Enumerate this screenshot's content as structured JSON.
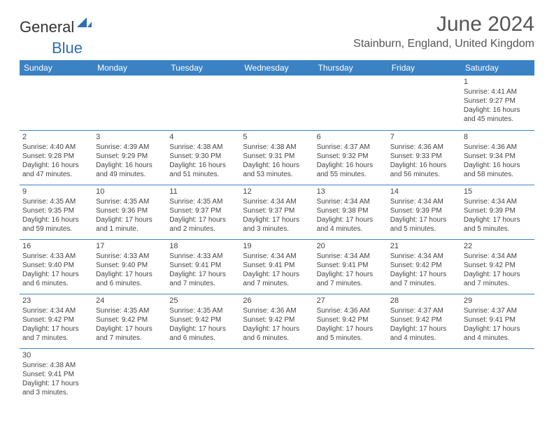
{
  "logo": {
    "part1": "General",
    "part2": "Blue"
  },
  "title": "June 2024",
  "location": "Stainburn, England, United Kingdom",
  "colors": {
    "header_bg": "#3b82c4",
    "header_text": "#ffffff",
    "border": "#3b82c4",
    "logo_blue": "#2d6fb5",
    "text": "#444444"
  },
  "weekdays": [
    "Sunday",
    "Monday",
    "Tuesday",
    "Wednesday",
    "Thursday",
    "Friday",
    "Saturday"
  ],
  "weeks": [
    [
      null,
      null,
      null,
      null,
      null,
      null,
      {
        "n": "1",
        "sr": "Sunrise: 4:41 AM",
        "ss": "Sunset: 9:27 PM",
        "dl": "Daylight: 16 hours and 45 minutes."
      }
    ],
    [
      {
        "n": "2",
        "sr": "Sunrise: 4:40 AM",
        "ss": "Sunset: 9:28 PM",
        "dl": "Daylight: 16 hours and 47 minutes."
      },
      {
        "n": "3",
        "sr": "Sunrise: 4:39 AM",
        "ss": "Sunset: 9:29 PM",
        "dl": "Daylight: 16 hours and 49 minutes."
      },
      {
        "n": "4",
        "sr": "Sunrise: 4:38 AM",
        "ss": "Sunset: 9:30 PM",
        "dl": "Daylight: 16 hours and 51 minutes."
      },
      {
        "n": "5",
        "sr": "Sunrise: 4:38 AM",
        "ss": "Sunset: 9:31 PM",
        "dl": "Daylight: 16 hours and 53 minutes."
      },
      {
        "n": "6",
        "sr": "Sunrise: 4:37 AM",
        "ss": "Sunset: 9:32 PM",
        "dl": "Daylight: 16 hours and 55 minutes."
      },
      {
        "n": "7",
        "sr": "Sunrise: 4:36 AM",
        "ss": "Sunset: 9:33 PM",
        "dl": "Daylight: 16 hours and 56 minutes."
      },
      {
        "n": "8",
        "sr": "Sunrise: 4:36 AM",
        "ss": "Sunset: 9:34 PM",
        "dl": "Daylight: 16 hours and 58 minutes."
      }
    ],
    [
      {
        "n": "9",
        "sr": "Sunrise: 4:35 AM",
        "ss": "Sunset: 9:35 PM",
        "dl": "Daylight: 16 hours and 59 minutes."
      },
      {
        "n": "10",
        "sr": "Sunrise: 4:35 AM",
        "ss": "Sunset: 9:36 PM",
        "dl": "Daylight: 17 hours and 1 minute."
      },
      {
        "n": "11",
        "sr": "Sunrise: 4:35 AM",
        "ss": "Sunset: 9:37 PM",
        "dl": "Daylight: 17 hours and 2 minutes."
      },
      {
        "n": "12",
        "sr": "Sunrise: 4:34 AM",
        "ss": "Sunset: 9:37 PM",
        "dl": "Daylight: 17 hours and 3 minutes."
      },
      {
        "n": "13",
        "sr": "Sunrise: 4:34 AM",
        "ss": "Sunset: 9:38 PM",
        "dl": "Daylight: 17 hours and 4 minutes."
      },
      {
        "n": "14",
        "sr": "Sunrise: 4:34 AM",
        "ss": "Sunset: 9:39 PM",
        "dl": "Daylight: 17 hours and 5 minutes."
      },
      {
        "n": "15",
        "sr": "Sunrise: 4:34 AM",
        "ss": "Sunset: 9:39 PM",
        "dl": "Daylight: 17 hours and 5 minutes."
      }
    ],
    [
      {
        "n": "16",
        "sr": "Sunrise: 4:33 AM",
        "ss": "Sunset: 9:40 PM",
        "dl": "Daylight: 17 hours and 6 minutes."
      },
      {
        "n": "17",
        "sr": "Sunrise: 4:33 AM",
        "ss": "Sunset: 9:40 PM",
        "dl": "Daylight: 17 hours and 6 minutes."
      },
      {
        "n": "18",
        "sr": "Sunrise: 4:33 AM",
        "ss": "Sunset: 9:41 PM",
        "dl": "Daylight: 17 hours and 7 minutes."
      },
      {
        "n": "19",
        "sr": "Sunrise: 4:34 AM",
        "ss": "Sunset: 9:41 PM",
        "dl": "Daylight: 17 hours and 7 minutes."
      },
      {
        "n": "20",
        "sr": "Sunrise: 4:34 AM",
        "ss": "Sunset: 9:41 PM",
        "dl": "Daylight: 17 hours and 7 minutes."
      },
      {
        "n": "21",
        "sr": "Sunrise: 4:34 AM",
        "ss": "Sunset: 9:42 PM",
        "dl": "Daylight: 17 hours and 7 minutes."
      },
      {
        "n": "22",
        "sr": "Sunrise: 4:34 AM",
        "ss": "Sunset: 9:42 PM",
        "dl": "Daylight: 17 hours and 7 minutes."
      }
    ],
    [
      {
        "n": "23",
        "sr": "Sunrise: 4:34 AM",
        "ss": "Sunset: 9:42 PM",
        "dl": "Daylight: 17 hours and 7 minutes."
      },
      {
        "n": "24",
        "sr": "Sunrise: 4:35 AM",
        "ss": "Sunset: 9:42 PM",
        "dl": "Daylight: 17 hours and 7 minutes."
      },
      {
        "n": "25",
        "sr": "Sunrise: 4:35 AM",
        "ss": "Sunset: 9:42 PM",
        "dl": "Daylight: 17 hours and 6 minutes."
      },
      {
        "n": "26",
        "sr": "Sunrise: 4:36 AM",
        "ss": "Sunset: 9:42 PM",
        "dl": "Daylight: 17 hours and 6 minutes."
      },
      {
        "n": "27",
        "sr": "Sunrise: 4:36 AM",
        "ss": "Sunset: 9:42 PM",
        "dl": "Daylight: 17 hours and 5 minutes."
      },
      {
        "n": "28",
        "sr": "Sunrise: 4:37 AM",
        "ss": "Sunset: 9:42 PM",
        "dl": "Daylight: 17 hours and 4 minutes."
      },
      {
        "n": "29",
        "sr": "Sunrise: 4:37 AM",
        "ss": "Sunset: 9:41 PM",
        "dl": "Daylight: 17 hours and 4 minutes."
      }
    ],
    [
      {
        "n": "30",
        "sr": "Sunrise: 4:38 AM",
        "ss": "Sunset: 9:41 PM",
        "dl": "Daylight: 17 hours and 3 minutes."
      },
      null,
      null,
      null,
      null,
      null,
      null
    ]
  ]
}
